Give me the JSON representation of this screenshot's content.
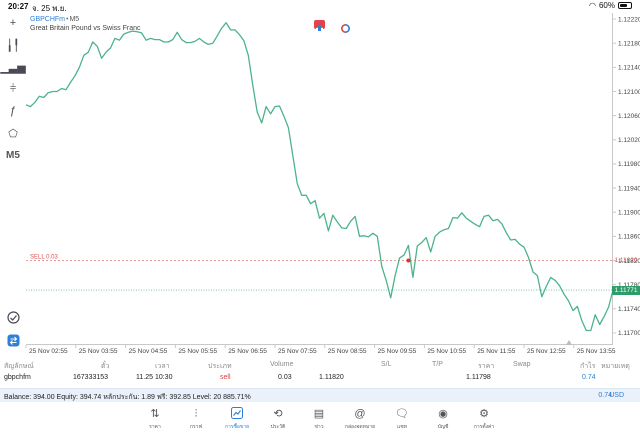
{
  "status_bar": {
    "time": "20:27",
    "date": "จ. 25 พ.ย.",
    "battery": "60%",
    "battery_level": 0.6
  },
  "chart": {
    "symbol": "GBPCHFm",
    "timeframe": "M5",
    "description": "Great Britain Pound vs Swiss Franc",
    "line_color": "#4cb38a",
    "sell_label": "SELL 0.03",
    "sell_color": "#e07a7a",
    "toolbar": [
      {
        "name": "crosshair-icon",
        "glyph": "+"
      },
      {
        "name": "candlestick-icon",
        "glyph": "╽╿"
      },
      {
        "name": "bar-chart-icon",
        "glyph": "▁▃▅"
      },
      {
        "name": "indicators-icon",
        "glyph": "⫩"
      },
      {
        "name": "function-icon",
        "glyph": "ƒ"
      },
      {
        "name": "objects-icon",
        "glyph": "⬠"
      },
      {
        "name": "timeframe-label",
        "glyph": "M5"
      }
    ]
  },
  "chart_data": {
    "type": "line",
    "x_labels": [
      "25 Nov 02:55",
      "25 Nov 03:55",
      "25 Nov 04:55",
      "25 Nov 05:55",
      "25 Nov 06:55",
      "25 Nov 07:55",
      "25 Nov 08:55",
      "25 Nov 09:55",
      "25 Nov 10:55",
      "25 Nov 11:55",
      "25 Nov 12:55",
      "25 Nov 13:55"
    ],
    "y_ticks": [
      "1.12220",
      "1.12180",
      "1.12140",
      "1.12100",
      "1.12060",
      "1.12020",
      "1.11980",
      "1.11940",
      "1.11900",
      "1.11860",
      "1.11820",
      "1.11780",
      "1.11740",
      "1.11700"
    ],
    "ylim": [
      1.1168,
      1.1223
    ],
    "x_range": [
      0,
      132
    ],
    "values": [
      1.12078,
      1.12075,
      1.12082,
      1.12092,
      1.1209,
      1.12098,
      1.121,
      1.121,
      1.12105,
      1.12103,
      1.12115,
      1.12126,
      1.1214,
      1.1216,
      1.12165,
      1.12182,
      1.12175,
      1.12155,
      1.12165,
      1.12172,
      1.12188,
      1.12185,
      1.12195,
      1.12198,
      1.122,
      1.12199,
      1.12197,
      1.12185,
      1.12188,
      1.12186,
      1.12186,
      1.12182,
      1.12182,
      1.12186,
      1.12198,
      1.12186,
      1.12181,
      1.12181,
      1.12183,
      1.12188,
      1.12182,
      1.12178,
      1.1218,
      1.12192,
      1.12205,
      1.12214,
      1.12202,
      1.12202,
      1.12194,
      1.12184,
      1.1216,
      1.1211,
      1.12066,
      1.12048,
      1.12075,
      1.12063,
      1.12075,
      1.12076,
      1.12059,
      1.1204,
      1.11994,
      1.11947,
      1.11928,
      1.11928,
      1.11914,
      1.11919,
      1.1189,
      1.11898,
      1.11869,
      1.11895,
      1.11884,
      1.11874,
      1.11873,
      1.11885,
      1.11893,
      1.1186,
      1.11861,
      1.11859,
      1.11865,
      1.1186,
      1.1181,
      1.11787,
      1.11758,
      1.11795,
      1.11824,
      1.11829,
      1.11845,
      1.11792,
      1.11844,
      1.1185,
      1.11858,
      1.11834,
      1.1186,
      1.11867,
      1.11871,
      1.11873,
      1.11891,
      1.1189,
      1.11899,
      1.1189,
      1.11885,
      1.1188,
      1.11876,
      1.11893,
      1.11895,
      1.11886,
      1.11888,
      1.11881,
      1.11866,
      1.11854,
      1.11855,
      1.11847,
      1.11842,
      1.11825,
      1.11801,
      1.11795,
      1.1176,
      1.11777,
      1.11792,
      1.11787,
      1.11778,
      1.11764,
      1.11753,
      1.11737,
      1.11744,
      1.1172,
      1.11704,
      1.11704,
      1.1173,
      1.11714,
      1.11727,
      1.11743,
      1.11771
    ],
    "sell_price": 1.1182,
    "current_price": 1.11771,
    "current_label": "1.11771",
    "sell_price_label": "1.11820",
    "entry_index": 86
  },
  "trades": {
    "headers": [
      "สัญลักษณ์",
      "ตั๋ว",
      "เวลา",
      "ประเภท",
      "Volume",
      "S/L",
      "T/P",
      "ราคา",
      "Swap",
      "กำไร",
      "หมายเหตุ"
    ],
    "row": {
      "symbol": "gbpchfm",
      "ticket": "167333153",
      "time": "11.25 10:30",
      "type": "sell",
      "volume": "0.03",
      "open_price": "1.11820",
      "price": "1.11798",
      "profit": "0.74"
    }
  },
  "balance": {
    "text": "Balance: 394.00 Equity: 394.74 หลักประกัน: 1.89 ฟรี: 392.85 Level: 20 885.71%",
    "profit": "0.74",
    "currency": "USD"
  },
  "nav": [
    {
      "name": "nav-quotes",
      "icon": "⇅",
      "label": "ราคา"
    },
    {
      "name": "nav-chart",
      "icon": "⫶",
      "label": "กราฟ"
    },
    {
      "name": "nav-trade",
      "icon": "📈",
      "label": "การซื้อขาย"
    },
    {
      "name": "nav-history",
      "icon": "⟲",
      "label": "ประวัติ"
    },
    {
      "name": "nav-news",
      "icon": "▤",
      "label": "ข่าว"
    },
    {
      "name": "nav-mailbox",
      "icon": "@",
      "label": "กล่องจดหมาย"
    },
    {
      "name": "nav-chat",
      "icon": "🗨",
      "label": "แชท"
    },
    {
      "name": "nav-accounts",
      "icon": "◉",
      "label": "บัญชี"
    },
    {
      "name": "nav-settings",
      "icon": "⚙",
      "label": "การตั้งค่า"
    }
  ],
  "active_nav": 2
}
